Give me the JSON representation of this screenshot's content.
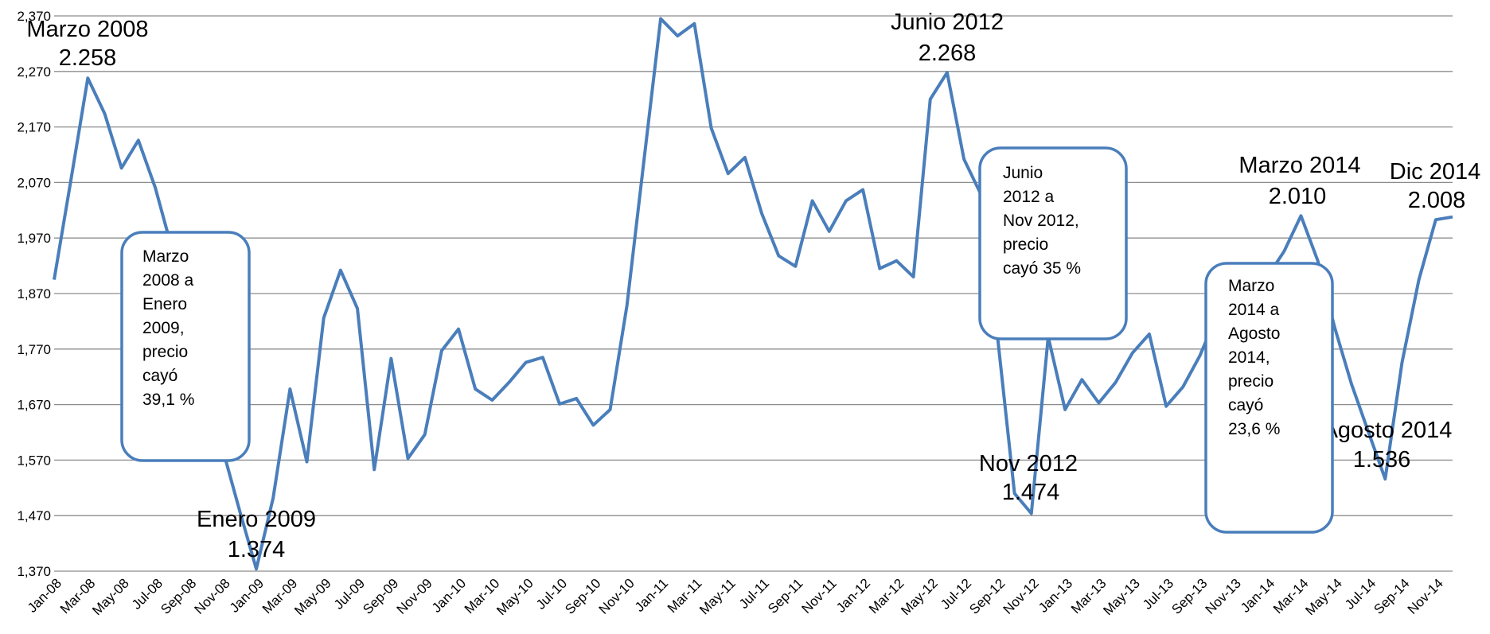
{
  "chart_data": {
    "type": "line",
    "categories": [
      "Jan-08",
      null,
      "Mar-08",
      null,
      "May-08",
      null,
      "Jul-08",
      null,
      "Sep-08",
      null,
      "Nov-08",
      null,
      "Jan-09",
      null,
      "Mar-09",
      null,
      "May-09",
      null,
      "Jul-09",
      null,
      "Sep-09",
      null,
      "Nov-09",
      null,
      "Jan-10",
      null,
      "Mar-10",
      null,
      "May-10",
      null,
      "Jul-10",
      null,
      "Sep-10",
      null,
      "Nov-10",
      null,
      "Jan-11",
      null,
      "Mar-11",
      null,
      "May-11",
      null,
      "Jul-11",
      null,
      "Sep-11",
      null,
      "Nov-11",
      null,
      "Jan-12",
      null,
      "Mar-12",
      null,
      "May-12",
      null,
      "Jul-12",
      null,
      "Sep-12",
      null,
      "Nov-12",
      null,
      "Jan-13",
      null,
      "Mar-13",
      null,
      "May-13",
      null,
      "Jul-13",
      null,
      "Sep-13",
      null,
      "Nov-13",
      null,
      "Jan-14",
      null,
      "Mar-14",
      null,
      "May-14",
      null,
      "Jul-14",
      null,
      "Sep-14",
      null,
      "Nov-14",
      null
    ],
    "series": [
      {
        "color": "#4a7ebb",
        "values": [
          1895,
          2075,
          2258,
          2194,
          2096,
          2146,
          2061,
          1950,
          1850,
          1700,
          1590,
          1480,
          1374,
          1502,
          1698,
          1567,
          1826,
          1912,
          1843,
          1553,
          1753,
          1573,
          1616,
          1767,
          1806,
          1698,
          1678,
          1710,
          1746,
          1755,
          1671,
          1681,
          1633,
          1661,
          1849,
          2108,
          2365,
          2334,
          2356,
          2168,
          2086,
          2115,
          2014,
          1938,
          1919,
          2037,
          1982,
          2037,
          2057,
          1915,
          1929,
          1900,
          2220,
          2268,
          2112,
          2049,
          1790,
          1510,
          1474,
          1792,
          1661,
          1715,
          1673,
          1710,
          1763,
          1797,
          1667,
          1702,
          1758,
          1830,
          1880,
          1920,
          1900,
          1946,
          2010,
          1929,
          1809,
          1707,
          1621,
          1536,
          1746,
          1895,
          2003,
          2008
        ]
      }
    ],
    "ylim": [
      1370,
      2370
    ],
    "yticks": [
      {
        "value": 1370,
        "label": "1,370"
      },
      {
        "value": 1470,
        "label": "1,470"
      },
      {
        "value": 1570,
        "label": "1,570"
      },
      {
        "value": 1670,
        "label": "1,670"
      },
      {
        "value": 1770,
        "label": "1,770"
      },
      {
        "value": 1870,
        "label": "1,870"
      },
      {
        "value": 1970,
        "label": "1,970"
      },
      {
        "value": 2070,
        "label": "2,070"
      },
      {
        "value": 2170,
        "label": "2,170"
      },
      {
        "value": 2270,
        "label": "2,270"
      },
      {
        "value": 2370,
        "label": "2,370"
      }
    ],
    "grid": true,
    "annotations": [
      {
        "title": "Marzo 2008",
        "value": "2.258"
      },
      {
        "title": "Enero 2009",
        "value": "1.374"
      },
      {
        "title": "Junio 2012",
        "value": "2.268"
      },
      {
        "title": "Nov 2012",
        "value": "1.474"
      },
      {
        "title": "Marzo 2014",
        "value": "2.010"
      },
      {
        "title": "Agosto 2014",
        "value": "1.536"
      },
      {
        "title": "Dic 2014",
        "value": "2.008"
      }
    ],
    "callouts": [
      [
        "Marzo",
        "2008 a",
        "Enero",
        "2009,",
        "precio",
        "cayó",
        "39,1 %"
      ],
      [
        "Junio",
        "2012 a",
        "Nov 2012,",
        "precio",
        "cayó 35 %"
      ],
      [
        "Marzo",
        "2014 a",
        "Agosto",
        "2014,",
        "precio",
        "cayó",
        "23,6 %"
      ]
    ]
  }
}
